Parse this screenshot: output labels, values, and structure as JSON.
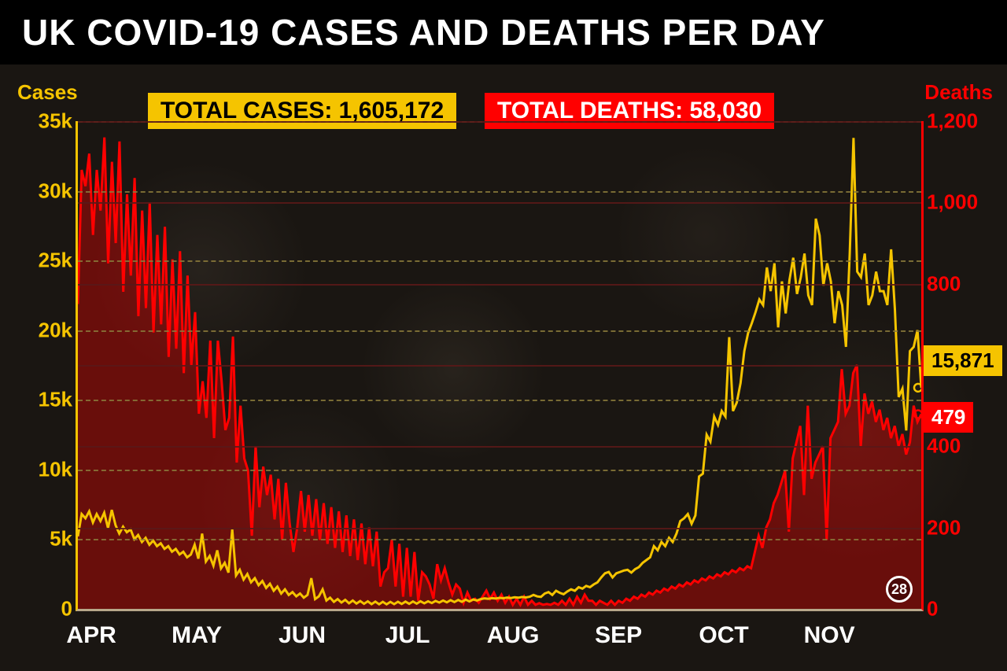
{
  "title": "UK COVID-19 CASES AND DEATHS PER DAY",
  "colors": {
    "background": "#1a1612",
    "title_bg": "#000000",
    "title_text": "#ffffff",
    "cases": "#f5c400",
    "deaths": "#ff0000",
    "axis_bottom": "#b8a88a",
    "cases_grid": "#8a7a3a",
    "deaths_grid": "#5a1818",
    "xtick_text": "#ffffff"
  },
  "typography": {
    "title_fontsize": 46,
    "axis_label_fontsize": 26,
    "tick_fontsize": 26,
    "xtick_fontsize": 30,
    "badge_fontsize": 30
  },
  "badges": {
    "cases": {
      "label": "TOTAL CASES: 1,605,172",
      "bg": "#f5c400",
      "text": "#000000"
    },
    "deaths": {
      "label": "TOTAL DEATHS: 58,030",
      "bg": "#ff0000",
      "text": "#ffffff"
    }
  },
  "left_axis": {
    "label": "Cases",
    "min": 0,
    "max": 35000,
    "ticks": [
      0,
      5000,
      10000,
      15000,
      20000,
      25000,
      30000,
      35000
    ],
    "tick_labels": [
      "0",
      "5k",
      "10k",
      "15k",
      "20k",
      "25k",
      "30k",
      "35k"
    ]
  },
  "right_axis": {
    "label": "Deaths",
    "min": 0,
    "max": 1200,
    "ticks": [
      0,
      200,
      400,
      600,
      800,
      1000,
      1200
    ],
    "tick_labels": [
      "0",
      "200",
      "400",
      "600",
      "800",
      "1,000",
      "1,200"
    ]
  },
  "x_axis": {
    "months": [
      "APR",
      "MAY",
      "JUN",
      "JUL",
      "AUG",
      "SEP",
      "OCT",
      "NOV"
    ],
    "end_day_badge": "28"
  },
  "endpoints": {
    "cases": {
      "value": 15871,
      "label": "15,871",
      "bg": "#f5c400",
      "text": "#000000"
    },
    "deaths": {
      "value": 479,
      "label": "479",
      "bg": "#ff0000",
      "text": "#ffffff"
    }
  },
  "series": {
    "cases": [
      5200,
      6800,
      6500,
      7000,
      6200,
      6800,
      6300,
      6900,
      5800,
      7100,
      6000,
      5400,
      5900,
      5500,
      5700,
      5000,
      5300,
      4800,
      5100,
      4600,
      4900,
      4500,
      4700,
      4300,
      4500,
      4100,
      4300,
      3900,
      4100,
      3700,
      3900,
      4600,
      3600,
      5400,
      3400,
      3800,
      3100,
      4200,
      2900,
      3300,
      2600,
      5700,
      2400,
      2800,
      2100,
      2500,
      1900,
      2200,
      1700,
      2000,
      1500,
      1800,
      1300,
      1600,
      1100,
      1400,
      1000,
      1200,
      900,
      1100,
      800,
      1000,
      2200,
      700,
      900,
      1400,
      600,
      800,
      500,
      700,
      450,
      650,
      400,
      600,
      380,
      560,
      360,
      540,
      340,
      520,
      330,
      510,
      330,
      500,
      340,
      510,
      350,
      520,
      360,
      530,
      370,
      540,
      400,
      540,
      420,
      570,
      450,
      600,
      470,
      620,
      490,
      640,
      510,
      660,
      530,
      680,
      600,
      700,
      750,
      720,
      770,
      740,
      790,
      760,
      810,
      780,
      830,
      800,
      850,
      820,
      870,
      1000,
      890,
      860,
      1100,
      1200,
      1000,
      1300,
      1150,
      1050,
      1250,
      1400,
      1300,
      1550,
      1450,
      1650,
      1550,
      1750,
      1900,
      2250,
      2550,
      2650,
      2250,
      2550,
      2650,
      2750,
      2800,
      2600,
      2850,
      3000,
      3300,
      3500,
      3700,
      4500,
      4200,
      4800,
      4500,
      5100,
      4800,
      5400,
      6300,
      6500,
      6800,
      6100,
      6700,
      9500,
      9700,
      12500,
      12000,
      13800,
      13200,
      14200,
      13800,
      19500,
      14200,
      14800,
      16200,
      18500,
      19800,
      20500,
      21300,
      22200,
      21800,
      24500,
      22800,
      24800,
      20200,
      23500,
      21200,
      23600,
      25200,
      22600,
      23800,
      25500,
      22500,
      21800,
      28000,
      26800,
      23200,
      24800,
      23500,
      20500,
      22800,
      21800,
      18800,
      25500,
      33800,
      24200,
      23800,
      25500,
      21800,
      22500,
      24200,
      22800,
      22800,
      21800,
      25800,
      21500,
      15200,
      15800,
      12800,
      18500,
      18800,
      20000,
      15871
    ],
    "deaths": [
      750,
      1080,
      1040,
      1120,
      920,
      1080,
      980,
      1160,
      850,
      1100,
      900,
      1150,
      780,
      1020,
      820,
      1060,
      720,
      980,
      740,
      1000,
      680,
      920,
      700,
      940,
      620,
      860,
      640,
      880,
      580,
      820,
      600,
      730,
      480,
      560,
      470,
      660,
      420,
      660,
      560,
      440,
      470,
      670,
      360,
      500,
      370,
      340,
      180,
      400,
      250,
      350,
      280,
      330,
      220,
      320,
      170,
      310,
      210,
      140,
      200,
      290,
      190,
      280,
      180,
      270,
      170,
      260,
      160,
      250,
      150,
      240,
      140,
      230,
      130,
      220,
      120,
      210,
      110,
      200,
      105,
      190,
      55,
      90,
      100,
      170,
      55,
      160,
      30,
      150,
      30,
      140,
      20,
      90,
      80,
      60,
      25,
      110,
      70,
      100,
      65,
      35,
      60,
      50,
      15,
      40,
      20,
      25,
      15,
      30,
      45,
      25,
      40,
      20,
      35,
      15,
      30,
      10,
      25,
      10,
      30,
      10,
      20,
      10,
      14,
      10,
      12,
      10,
      15,
      10,
      20,
      10,
      25,
      10,
      30,
      15,
      35,
      20,
      20,
      10,
      20,
      15,
      10,
      20,
      10,
      20,
      15,
      25,
      20,
      30,
      25,
      35,
      30,
      40,
      35,
      45,
      40,
      50,
      45,
      55,
      50,
      60,
      55,
      65,
      60,
      70,
      65,
      75,
      70,
      80,
      75,
      85,
      80,
      90,
      85,
      95,
      90,
      100,
      95,
      105,
      100,
      140,
      180,
      150,
      200,
      220,
      260,
      280,
      310,
      340,
      190,
      370,
      410,
      450,
      280,
      500,
      320,
      360,
      380,
      400,
      170,
      420,
      440,
      460,
      590,
      480,
      500,
      580,
      600,
      400,
      530,
      480,
      510,
      460,
      490,
      440,
      470,
      420,
      450,
      400,
      430,
      380,
      410,
      500,
      460,
      479
    ]
  },
  "chart": {
    "type": "dual-axis-line",
    "cases_line_width": 3,
    "deaths_line_width": 3,
    "deaths_fill_opacity": 0.35,
    "grid_dash": "6,5"
  }
}
